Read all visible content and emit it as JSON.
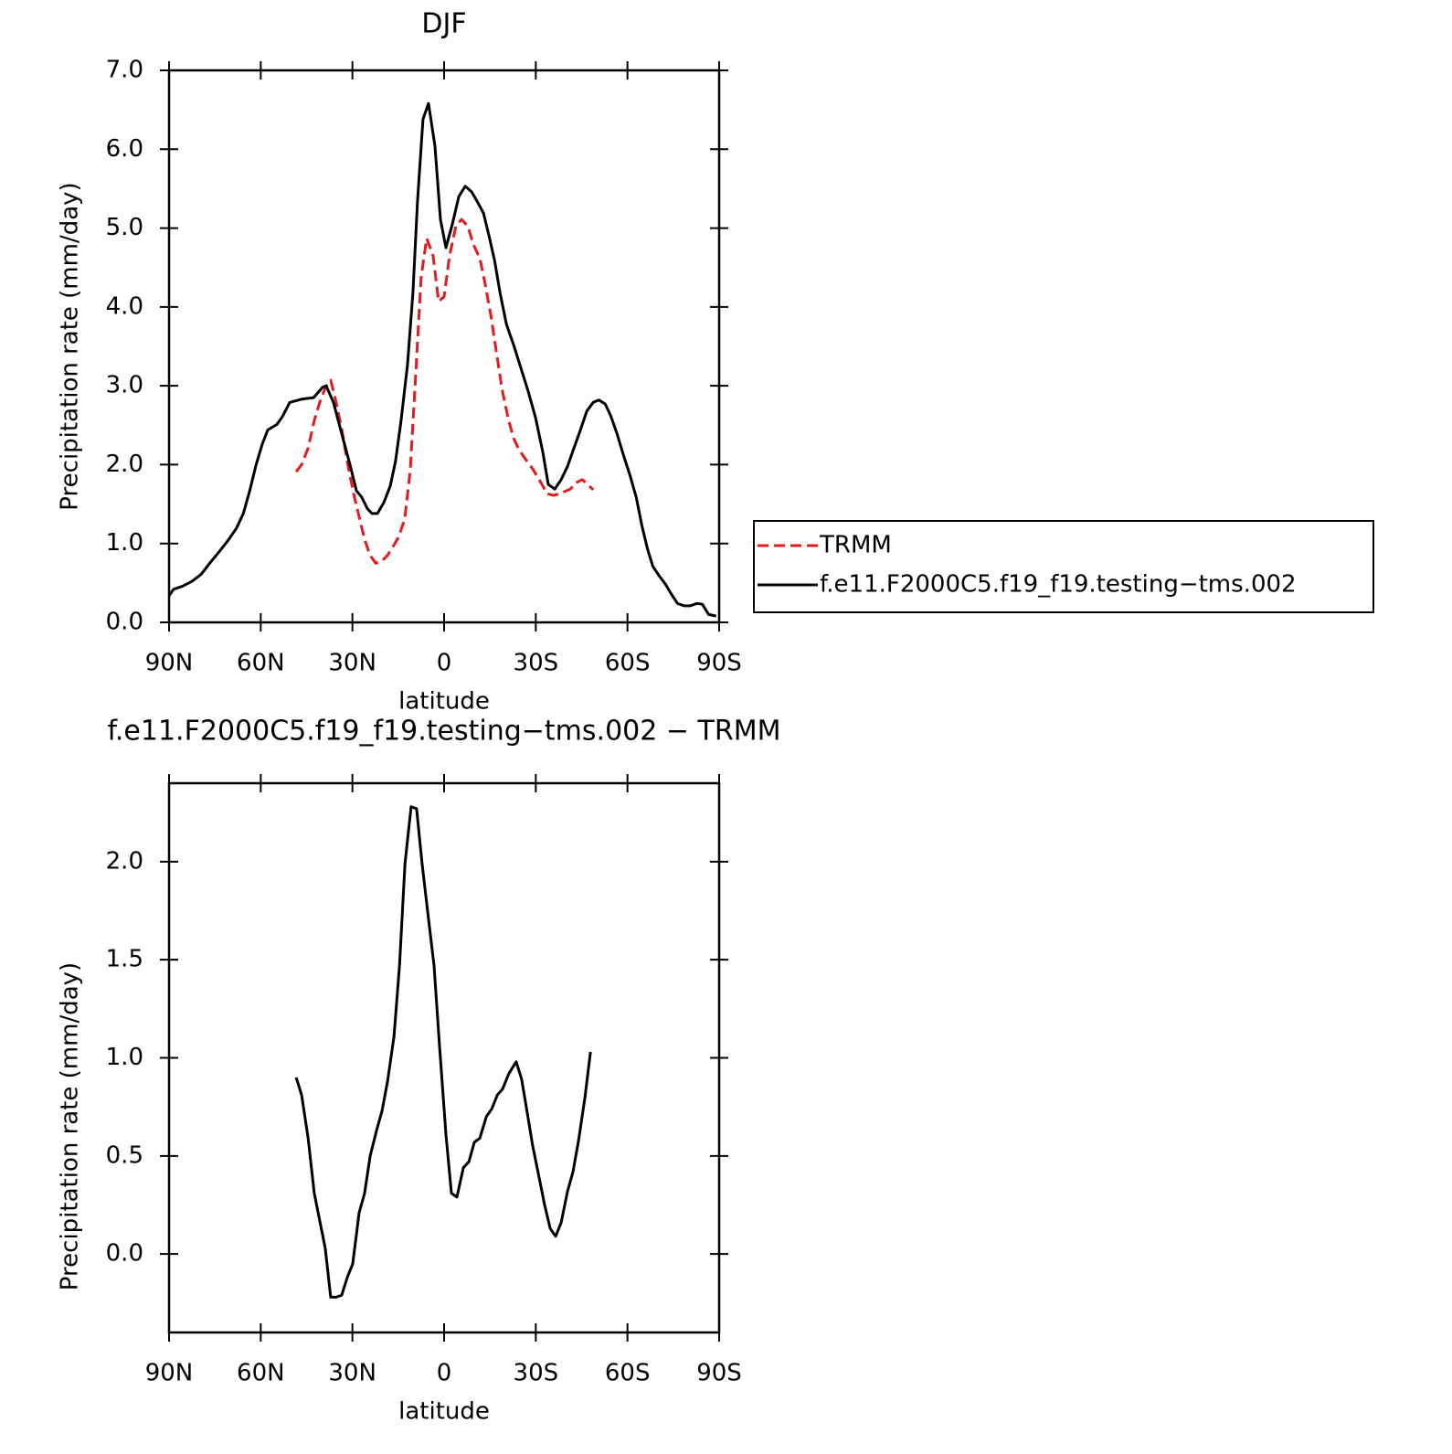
{
  "chart_data": [
    {
      "type": "line",
      "title": "DJF",
      "xlabel": "latitude",
      "ylabel": "Precipitation rate (mm/day)",
      "xlim": [
        90,
        -90
      ],
      "xticks": [
        {
          "value": 90,
          "label": "90N"
        },
        {
          "value": 60,
          "label": "60N"
        },
        {
          "value": 30,
          "label": "30N"
        },
        0,
        {
          "value": -30,
          "label": "30S"
        },
        {
          "value": -60,
          "label": "60S"
        },
        {
          "value": -90,
          "label": "90S"
        }
      ],
      "ylim": [
        0,
        7
      ],
      "yticks": [
        {
          "value": 0,
          "label": "0.0"
        },
        {
          "value": 1,
          "label": "1.0"
        },
        {
          "value": 2,
          "label": "2.0"
        },
        {
          "value": 3,
          "label": "3.0"
        },
        {
          "value": 4,
          "label": "4.0"
        },
        {
          "value": 5,
          "label": "5.0"
        },
        {
          "value": 6,
          "label": "6.0"
        },
        {
          "value": 7,
          "label": "7.0"
        }
      ],
      "legend": "right",
      "series": [
        {
          "name": "TRMM",
          "color": "#e41a1c",
          "dash": "dashed",
          "x": [
            48.4,
            46.6,
            44.5,
            42.5,
            40.7,
            38.9,
            37.1,
            35.3,
            33.5,
            31.7,
            29.6,
            27.8,
            26,
            24.2,
            22.4,
            20.3,
            18.5,
            16.7,
            14.9,
            12.9,
            11.1,
            9.3,
            7.5,
            5.7,
            3.6,
            1.8,
            0,
            -1.8,
            -3.9,
            -5.7,
            -7.8,
            -9.6,
            -11.7,
            -13.5,
            -15.3,
            -17.1,
            -18.9,
            -21,
            -22.8,
            -24.5,
            -26.6,
            -28.4,
            -30.2,
            -32,
            -33.8,
            -35.9,
            -37.7,
            -39.5,
            -41.3,
            -43.1,
            -45.2,
            -47,
            -48.8
          ],
          "values": [
            1.91,
            2.0,
            2.21,
            2.56,
            2.79,
            2.97,
            3.07,
            2.79,
            2.45,
            2.04,
            1.63,
            1.34,
            1.05,
            0.85,
            0.75,
            0.78,
            0.85,
            0.96,
            1.08,
            1.31,
            1.92,
            3.14,
            4.38,
            4.87,
            4.65,
            4.07,
            4.13,
            4.65,
            5.03,
            5.11,
            5.02,
            4.79,
            4.62,
            4.28,
            3.89,
            3.43,
            2.97,
            2.58,
            2.33,
            2.19,
            2.07,
            1.98,
            1.87,
            1.75,
            1.63,
            1.61,
            1.63,
            1.66,
            1.69,
            1.77,
            1.81,
            1.75,
            1.68
          ]
        },
        {
          "name": "f.e11.F2000C5.f19_f19.testing−tms.002",
          "color": "#000000",
          "dash": "solid",
          "x": [
            90,
            88.5,
            85.5,
            82.5,
            79.5,
            76.5,
            73.5,
            70.5,
            68,
            65.7,
            63.6,
            61.5,
            59.5,
            57.7,
            54.7,
            52.9,
            50.5,
            46.6,
            42.7,
            39.8,
            38.6,
            36.2,
            33.5,
            30.8,
            28.7,
            27,
            25.1,
            23.6,
            21.8,
            19.7,
            17.6,
            15.9,
            14.1,
            12,
            10.2,
            8.7,
            6.9,
            5.1,
            3,
            1.2,
            -0.6,
            -2.7,
            -4.8,
            -6.9,
            -9,
            -10.8,
            -12.9,
            -14.7,
            -16.5,
            -18.3,
            -20.4,
            -22.8,
            -25.1,
            -27.5,
            -29.9,
            -32.3,
            -34.1,
            -36.2,
            -38.3,
            -40.4,
            -42.5,
            -44.6,
            -46.7,
            -48.8,
            -50.6,
            -52.7,
            -54.5,
            -56.6,
            -58.7,
            -60.8,
            -62.9,
            -64.7,
            -66.5,
            -68.3,
            -70.4,
            -72.5,
            -74.3,
            -76.4,
            -78.5,
            -80.6,
            -82.7,
            -84.5,
            -86.6,
            -89
          ],
          "values": [
            0.34,
            0.42,
            0.46,
            0.52,
            0.61,
            0.76,
            0.9,
            1.05,
            1.19,
            1.38,
            1.67,
            2.0,
            2.26,
            2.44,
            2.51,
            2.61,
            2.79,
            2.83,
            2.85,
            2.98,
            3.0,
            2.79,
            2.39,
            2.0,
            1.67,
            1.59,
            1.44,
            1.38,
            1.38,
            1.52,
            1.73,
            2.04,
            2.55,
            3.26,
            4.18,
            5.34,
            6.38,
            6.58,
            6.04,
            5.11,
            4.75,
            5.05,
            5.4,
            5.53,
            5.46,
            5.34,
            5.19,
            4.9,
            4.59,
            4.18,
            3.78,
            3.51,
            3.23,
            2.93,
            2.6,
            2.16,
            1.75,
            1.69,
            1.81,
            1.98,
            2.21,
            2.44,
            2.68,
            2.79,
            2.82,
            2.77,
            2.62,
            2.39,
            2.12,
            1.87,
            1.58,
            1.23,
            0.94,
            0.71,
            0.59,
            0.48,
            0.36,
            0.24,
            0.21,
            0.21,
            0.24,
            0.23,
            0.1,
            0.08
          ]
        }
      ]
    },
    {
      "type": "line",
      "title": "f.e11.F2000C5.f19_f19.testing−tms.002 − TRMM",
      "xlabel": "latitude",
      "ylabel": "Precipitation rate (mm/day)",
      "xlim": [
        90,
        -90
      ],
      "xticks": [
        {
          "value": 90,
          "label": "90N"
        },
        {
          "value": 60,
          "label": "60N"
        },
        {
          "value": 30,
          "label": "30N"
        },
        0,
        {
          "value": -30,
          "label": "30S"
        },
        {
          "value": -60,
          "label": "60S"
        },
        {
          "value": -90,
          "label": "90S"
        }
      ],
      "ylim": [
        -0.4,
        2.4
      ],
      "yticks": [
        {
          "value": 0,
          "label": "0.0"
        },
        0.5,
        {
          "value": 1,
          "label": "1.0"
        },
        1.5,
        {
          "value": 2,
          "label": "2.0"
        }
      ],
      "color": "#000000",
      "x": [
        48.4,
        46.6,
        44.5,
        42.5,
        40.7,
        38.9,
        37.1,
        35.3,
        33.5,
        31.7,
        29.9,
        27.8,
        26,
        24.2,
        22.1,
        20.3,
        18.5,
        16.4,
        14.6,
        12.8,
        10.8,
        9,
        7.2,
        5.1,
        3.3,
        1.5,
        -0.6,
        -2.4,
        -4.2,
        -6.3,
        -8.1,
        -9.9,
        -11.7,
        -13.8,
        -15.6,
        -17.4,
        -19.1,
        -21.2,
        -23.6,
        -25.4,
        -27.2,
        -29,
        -31.1,
        -32.9,
        -34.7,
        -36.5,
        -38.3,
        -40.4,
        -42.2,
        -44,
        -46.1,
        -47.9
      ],
      "values": [
        0.9,
        0.81,
        0.59,
        0.31,
        0.17,
        0.03,
        -0.22,
        -0.22,
        -0.21,
        -0.12,
        -0.05,
        0.21,
        0.31,
        0.5,
        0.63,
        0.73,
        0.88,
        1.11,
        1.47,
        1.99,
        2.28,
        2.27,
        1.99,
        1.71,
        1.47,
        1.06,
        0.61,
        0.31,
        0.29,
        0.44,
        0.47,
        0.57,
        0.59,
        0.7,
        0.74,
        0.81,
        0.84,
        0.92,
        0.98,
        0.89,
        0.72,
        0.55,
        0.39,
        0.25,
        0.13,
        0.09,
        0.16,
        0.32,
        0.42,
        0.58,
        0.8,
        1.03
      ]
    }
  ]
}
